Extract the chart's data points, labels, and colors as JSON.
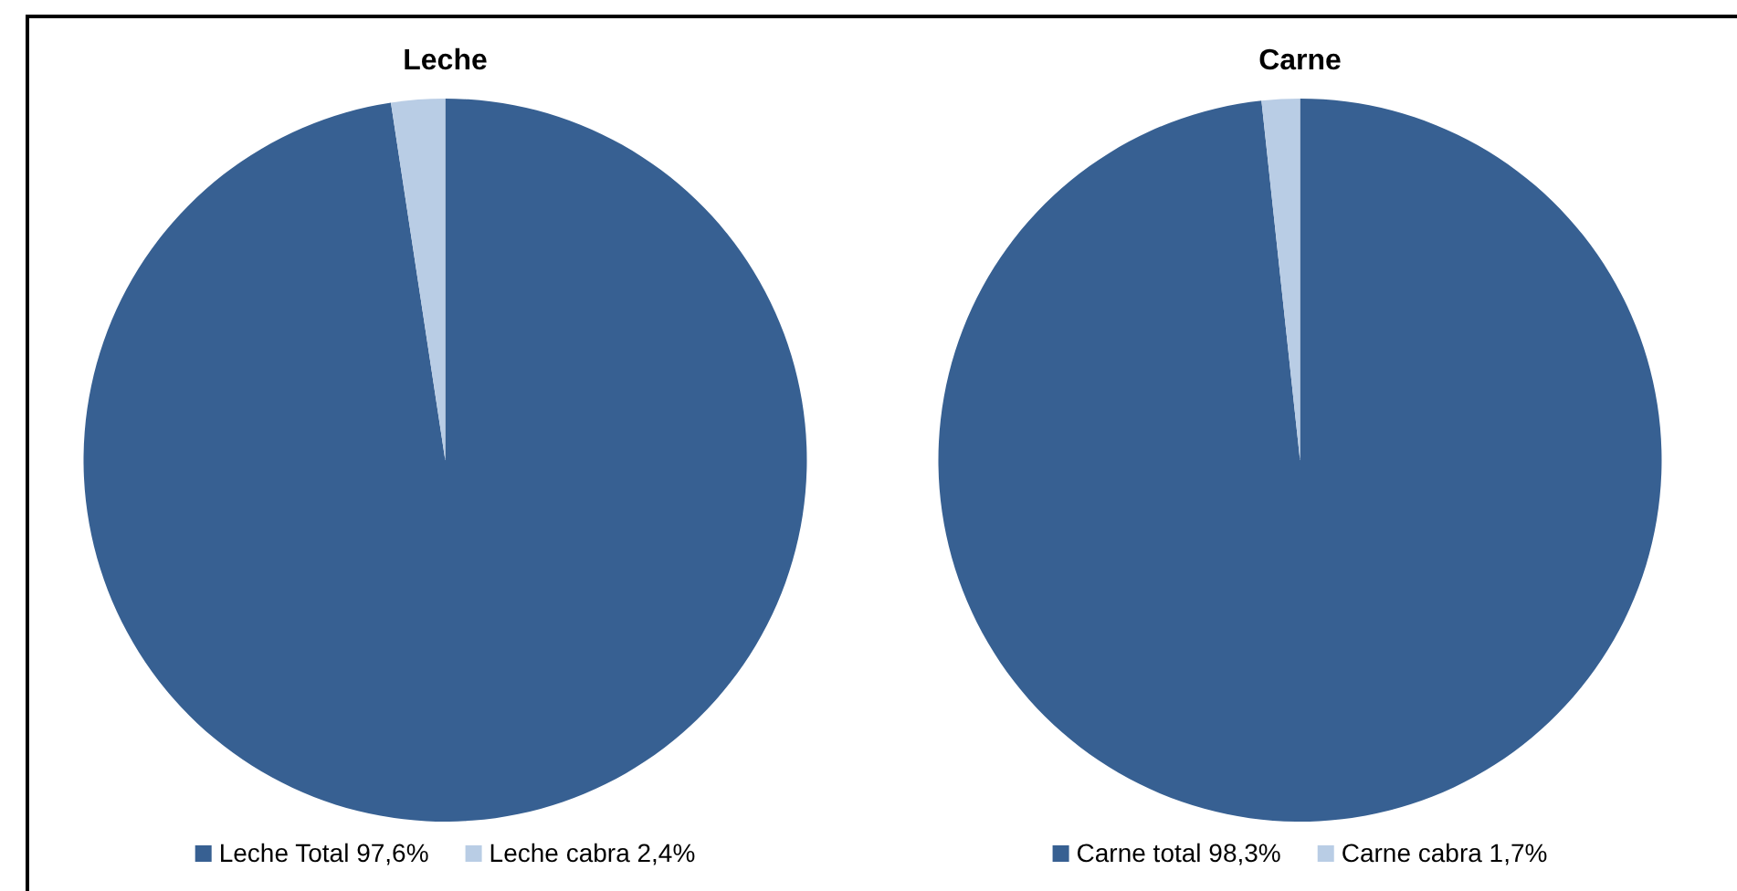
{
  "chart_data": [
    {
      "type": "pie",
      "title": "Leche",
      "categories": [
        "Leche Total 97,6%",
        "Leche cabra 2,4%"
      ],
      "values": [
        97.6,
        2.4
      ],
      "colors": [
        "#376092",
        "#b9cde5"
      ],
      "legend": "bottom"
    },
    {
      "type": "pie",
      "title": "Carne",
      "categories": [
        "Carne total 98,3%",
        "Carne cabra 1,7%"
      ],
      "values": [
        98.3,
        1.7
      ],
      "colors": [
        "#376092",
        "#b9cde5"
      ],
      "legend": "bottom"
    }
  ]
}
